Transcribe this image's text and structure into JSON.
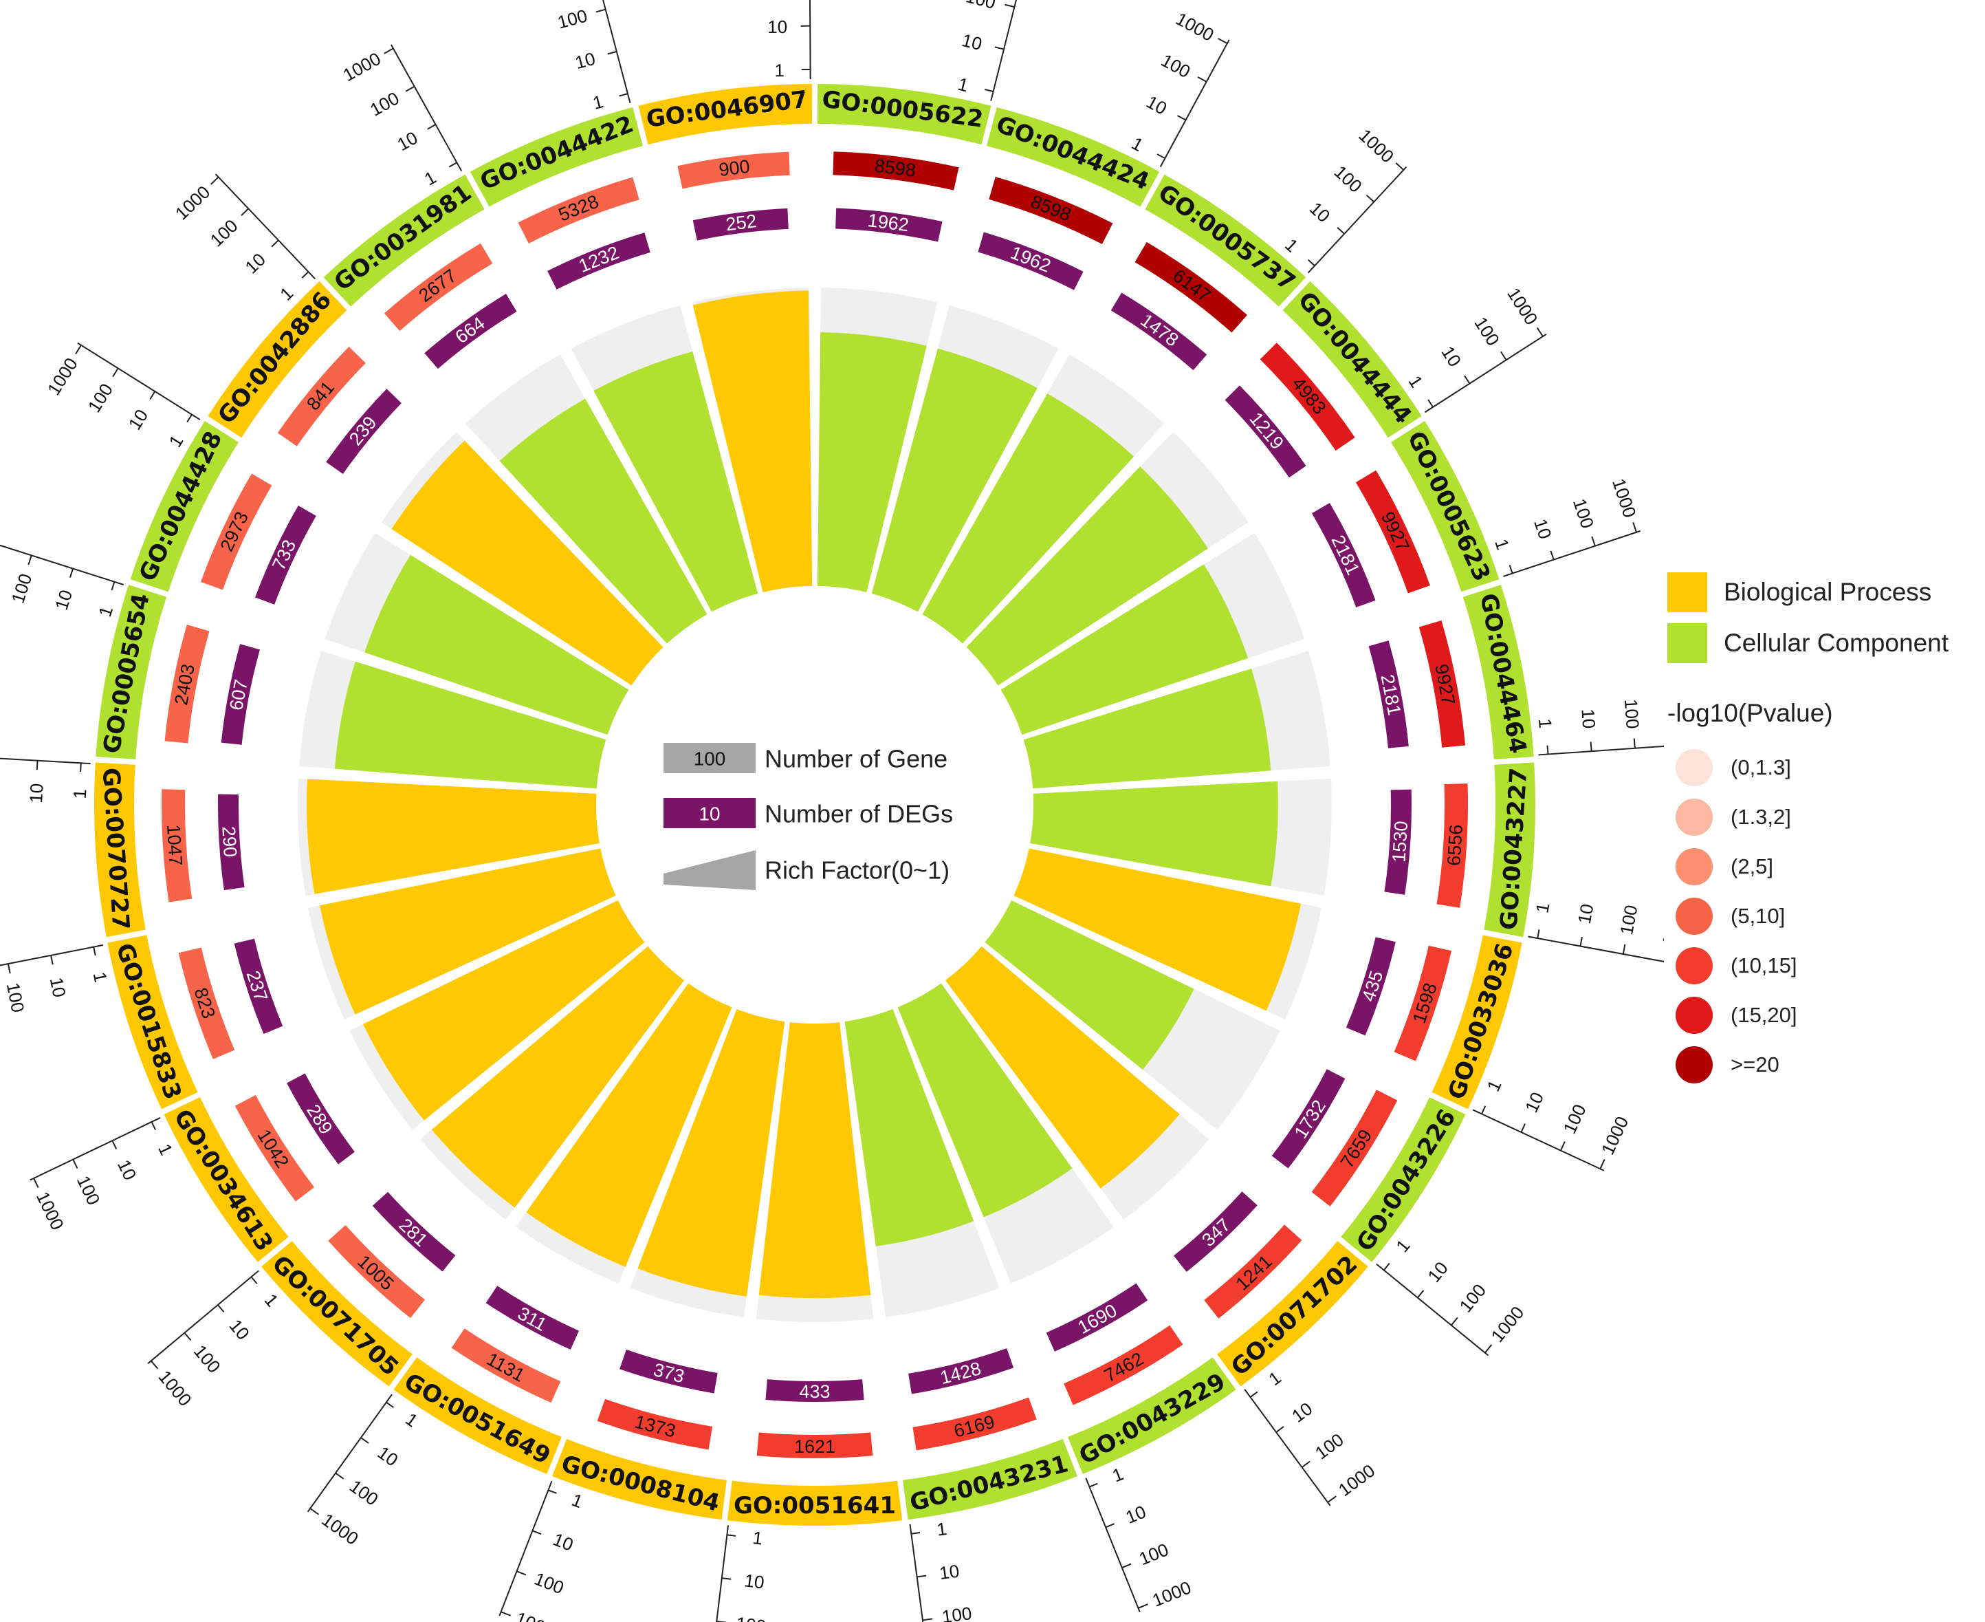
{
  "chart_data": {
    "type": "circular-go-enrichment",
    "categories_legend": [
      {
        "name": "Biological Process",
        "color": "#ffc800"
      },
      {
        "name": "Cellular Component",
        "color": "#b0e030"
      }
    ],
    "pvalue_legend_title": "-log10(Pvalue)",
    "pvalue_bins": [
      {
        "label": "(0,1.3]",
        "color": "#fde2d8"
      },
      {
        "label": "(1.3,2]",
        "color": "#fcb8a0"
      },
      {
        "label": "(2,5]",
        "color": "#fb8f70"
      },
      {
        "label": "(5,10]",
        "color": "#f86449"
      },
      {
        "label": "(10,15]",
        "color": "#f23d2e"
      },
      {
        "label": "(15,20]",
        "color": "#e01a1a"
      },
      {
        "label": ">=20",
        "color": "#b00000"
      }
    ],
    "center_legend": [
      {
        "sample": "100",
        "label": "Number of Gene"
      },
      {
        "sample": "10",
        "label": "Number of DEGs"
      },
      {
        "sample": "",
        "label": "Rich Factor(0~1)"
      }
    ],
    "scale_ticks": [
      "1",
      "10",
      "100",
      "1000"
    ],
    "terms": [
      {
        "id": "GO:0005622",
        "category": "Cellular Component",
        "genes": 8598,
        "degs": 1962,
        "pbin": 6,
        "rich": 0.85
      },
      {
        "id": "GO:0044424",
        "category": "Cellular Component",
        "genes": 8598,
        "degs": 1962,
        "pbin": 6,
        "rich": 0.85
      },
      {
        "id": "GO:0005737",
        "category": "Cellular Component",
        "genes": 6147,
        "degs": 1478,
        "pbin": 6,
        "rich": 0.85
      },
      {
        "id": "GO:0044444",
        "category": "Cellular Component",
        "genes": 4983,
        "degs": 1219,
        "pbin": 5,
        "rich": 0.84
      },
      {
        "id": "GO:0005623",
        "category": "Cellular Component",
        "genes": 9927,
        "degs": 2181,
        "pbin": 5,
        "rich": 0.8
      },
      {
        "id": "GO:0044464",
        "category": "Cellular Component",
        "genes": 9927,
        "degs": 2181,
        "pbin": 5,
        "rich": 0.8
      },
      {
        "id": "GO:0043227",
        "category": "Cellular Component",
        "genes": 6556,
        "degs": 1530,
        "pbin": 4,
        "rich": 0.82
      },
      {
        "id": "GO:0033036",
        "category": "Biological Process",
        "genes": 1598,
        "degs": 435,
        "pbin": 4,
        "rich": 0.93
      },
      {
        "id": "GO:0043226",
        "category": "Cellular Component",
        "genes": 7659,
        "degs": 1732,
        "pbin": 4,
        "rich": 0.68
      },
      {
        "id": "GO:0071702",
        "category": "Biological Process",
        "genes": 1241,
        "degs": 347,
        "pbin": 4,
        "rich": 0.87
      },
      {
        "id": "GO:0043229",
        "category": "Cellular Component",
        "genes": 7462,
        "degs": 1690,
        "pbin": 4,
        "rich": 0.76
      },
      {
        "id": "GO:0043231",
        "category": "Cellular Component",
        "genes": 6169,
        "degs": 1428,
        "pbin": 4,
        "rich": 0.76
      },
      {
        "id": "GO:0051641",
        "category": "Biological Process",
        "genes": 1621,
        "degs": 433,
        "pbin": 4,
        "rich": 0.92
      },
      {
        "id": "GO:0008104",
        "category": "Biological Process",
        "genes": 1373,
        "degs": 373,
        "pbin": 4,
        "rich": 0.93
      },
      {
        "id": "GO:0051649",
        "category": "Biological Process",
        "genes": 1131,
        "degs": 311,
        "pbin": 3,
        "rich": 0.94
      },
      {
        "id": "GO:0071705",
        "category": "Biological Process",
        "genes": 1005,
        "degs": 281,
        "pbin": 3,
        "rich": 0.95
      },
      {
        "id": "GO:0034613",
        "category": "Biological Process",
        "genes": 1042,
        "degs": 289,
        "pbin": 3,
        "rich": 0.95
      },
      {
        "id": "GO:0015833",
        "category": "Biological Process",
        "genes": 823,
        "degs": 237,
        "pbin": 3,
        "rich": 0.96
      },
      {
        "id": "GO:0070727",
        "category": "Biological Process",
        "genes": 1047,
        "degs": 290,
        "pbin": 3,
        "rich": 0.97
      },
      {
        "id": "GO:0005654",
        "category": "Cellular Component",
        "genes": 2403,
        "degs": 607,
        "pbin": 3,
        "rich": 0.88
      },
      {
        "id": "GO:0044428",
        "category": "Cellular Component",
        "genes": 2973,
        "degs": 733,
        "pbin": 3,
        "rich": 0.86
      },
      {
        "id": "GO:0042886",
        "category": "Biological Process",
        "genes": 841,
        "degs": 239,
        "pbin": 3,
        "rich": 0.96
      },
      {
        "id": "GO:0031981",
        "category": "Cellular Component",
        "genes": 2677,
        "degs": 664,
        "pbin": 3,
        "rich": 0.83
      },
      {
        "id": "GO:0044422",
        "category": "Cellular Component",
        "genes": 5328,
        "degs": 1232,
        "pbin": 3,
        "rich": 0.84
      },
      {
        "id": "GO:0046907",
        "category": "Biological Process",
        "genes": 900,
        "degs": 252,
        "pbin": 3,
        "rich": 0.99
      }
    ]
  }
}
